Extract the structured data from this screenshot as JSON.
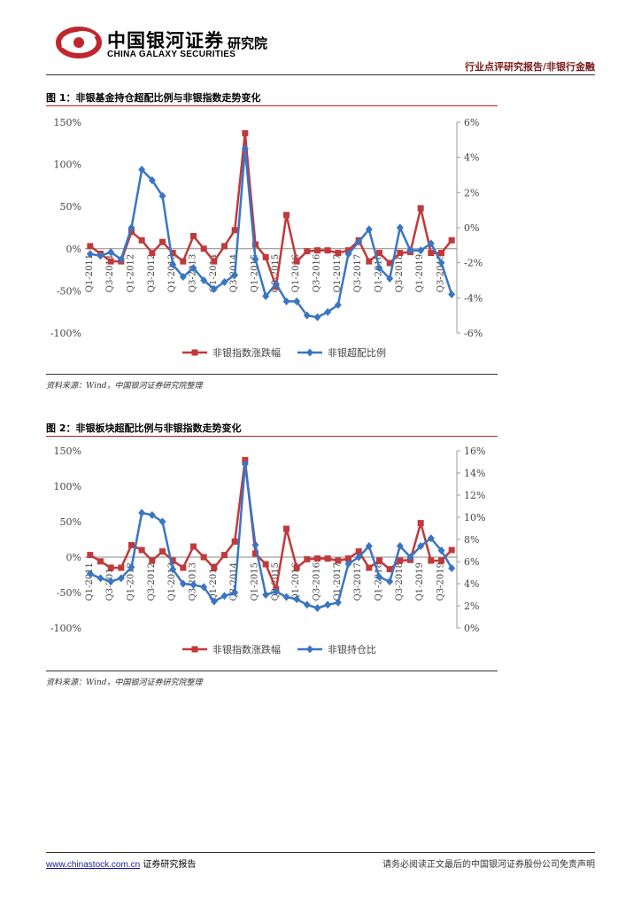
{
  "header": {
    "logo_cn": "中国银河证券",
    "logo_en": "CHINA GALAXY SECURITIES",
    "logo_inst": "研究院",
    "report_type": "行业点评研究报告/非银行金融"
  },
  "colors": {
    "red": "#c0393b",
    "blue": "#3a75c4",
    "accent": "#b22222"
  },
  "figures": [
    {
      "title": "图 1：非银基金持仓超配比例与非银指数走势变化",
      "source": "资料来源：Wind，中国银河证券研究院整理"
    },
    {
      "title": "图 2：非银板块超配比例与非银指数走势变化",
      "source": "资料来源：Wind，中国银河证券研究院整理"
    }
  ],
  "chart_data": [
    {
      "type": "line",
      "title": "图 1：非银基金持仓超配比例与非银指数走势变化",
      "x_tick_labels": [
        "Q1-2011",
        "Q3-2011",
        "Q1-2012",
        "Q3-2012",
        "Q1-2013",
        "Q3-2013",
        "Q1-2014",
        "Q3-2014",
        "Q1-2015",
        "Q3-2015",
        "Q1-2016",
        "Q3-2016",
        "Q1-2017",
        "Q3-2017",
        "Q1-2018",
        "Q3-2018",
        "Q1-2019",
        "Q3-2019"
      ],
      "y_left": {
        "ticks": [
          "150%",
          "100%",
          "50%",
          "0%",
          "-50%",
          "-100%"
        ],
        "range": [
          -100,
          150
        ]
      },
      "y_right": {
        "ticks": [
          "6%",
          "4%",
          "2%",
          "0%",
          "-2%",
          "-4%",
          "-6%"
        ],
        "range": [
          -6,
          6
        ]
      },
      "series": [
        {
          "name": "非银指数涨跌幅",
          "axis": "left",
          "color": "#c0393b",
          "marker": "square",
          "values": [
            3,
            -6,
            -15,
            -15,
            20,
            10,
            -5,
            8,
            -5,
            -15,
            15,
            0,
            -15,
            3,
            22,
            137,
            5,
            -10,
            -45,
            40,
            -15,
            -3,
            -2,
            -2,
            -5,
            -2,
            10,
            -15,
            -5,
            -17,
            -5,
            -4,
            48,
            -5,
            -5,
            10
          ]
        },
        {
          "name": "非银超配比例",
          "axis": "right",
          "color": "#3a75c4",
          "marker": "diamond",
          "values": [
            -1.5,
            -1.6,
            -1.4,
            -1.8,
            0,
            3.3,
            2.7,
            1.8,
            -2.1,
            -2.8,
            -2.3,
            -3.0,
            -3.5,
            -3.1,
            -2.7,
            4.5,
            -1.8,
            -3.9,
            -3.2,
            -4.2,
            -4.2,
            -5.0,
            -5.1,
            -4.8,
            -4.4,
            -1.5,
            -0.8,
            -0.1,
            -2.3,
            -2.9,
            0,
            -1.3,
            -1.3,
            -0.9,
            -2.0,
            -3.8
          ]
        }
      ]
    },
    {
      "type": "line",
      "title": "图 2：非银板块超配比例与非银指数走势变化",
      "x_tick_labels": [
        "Q1-2011",
        "Q3-2011",
        "Q1-2012",
        "Q3-2012",
        "Q1-2013",
        "Q3-2013",
        "Q1-2014",
        "Q3-2014",
        "Q1-2015",
        "Q3-2015",
        "Q1-2016",
        "Q3-2016",
        "Q1-2017",
        "Q3-2017",
        "Q1-2018",
        "Q3-2018",
        "Q1-2019",
        "Q3-2019"
      ],
      "y_left": {
        "ticks": [
          "150%",
          "100%",
          "50%",
          "0%",
          "-50%",
          "-100%"
        ],
        "range": [
          -100,
          150
        ]
      },
      "y_right": {
        "ticks": [
          "16%",
          "14%",
          "12%",
          "10%",
          "8%",
          "6%",
          "4%",
          "2%",
          "0%"
        ],
        "range": [
          0,
          16
        ]
      },
      "series": [
        {
          "name": "非银指数涨跌幅",
          "axis": "left",
          "color": "#c0393b",
          "marker": "square",
          "values": [
            3,
            -6,
            -15,
            -15,
            17,
            10,
            -5,
            8,
            -5,
            -15,
            15,
            0,
            -15,
            3,
            22,
            137,
            5,
            -10,
            -45,
            40,
            -15,
            -3,
            -2,
            -2,
            -5,
            -2,
            8,
            -15,
            -5,
            -17,
            -5,
            -4,
            48,
            -5,
            -5,
            10
          ]
        },
        {
          "name": "非银持仓比",
          "axis": "right",
          "color": "#3a75c4",
          "marker": "diamond",
          "values": [
            4.9,
            4.5,
            4.2,
            4.5,
            5.5,
            10.4,
            10.2,
            9.6,
            5.3,
            4.0,
            3.9,
            3.7,
            2.4,
            2.9,
            3.2,
            14.8,
            7.5,
            3.0,
            3.3,
            2.8,
            2.6,
            2.1,
            1.8,
            2.1,
            2.3,
            5.8,
            6.4,
            7.4,
            4.6,
            4.2,
            7.4,
            6.4,
            7.4,
            8.1,
            7.0,
            5.4
          ]
        }
      ]
    }
  ],
  "footer": {
    "link": "www.chinastock.com.cn",
    "left_suffix": " 证券研究报告",
    "disclaimer": "请务必阅读正文最后的中国银河证券股份公司免责声明"
  }
}
